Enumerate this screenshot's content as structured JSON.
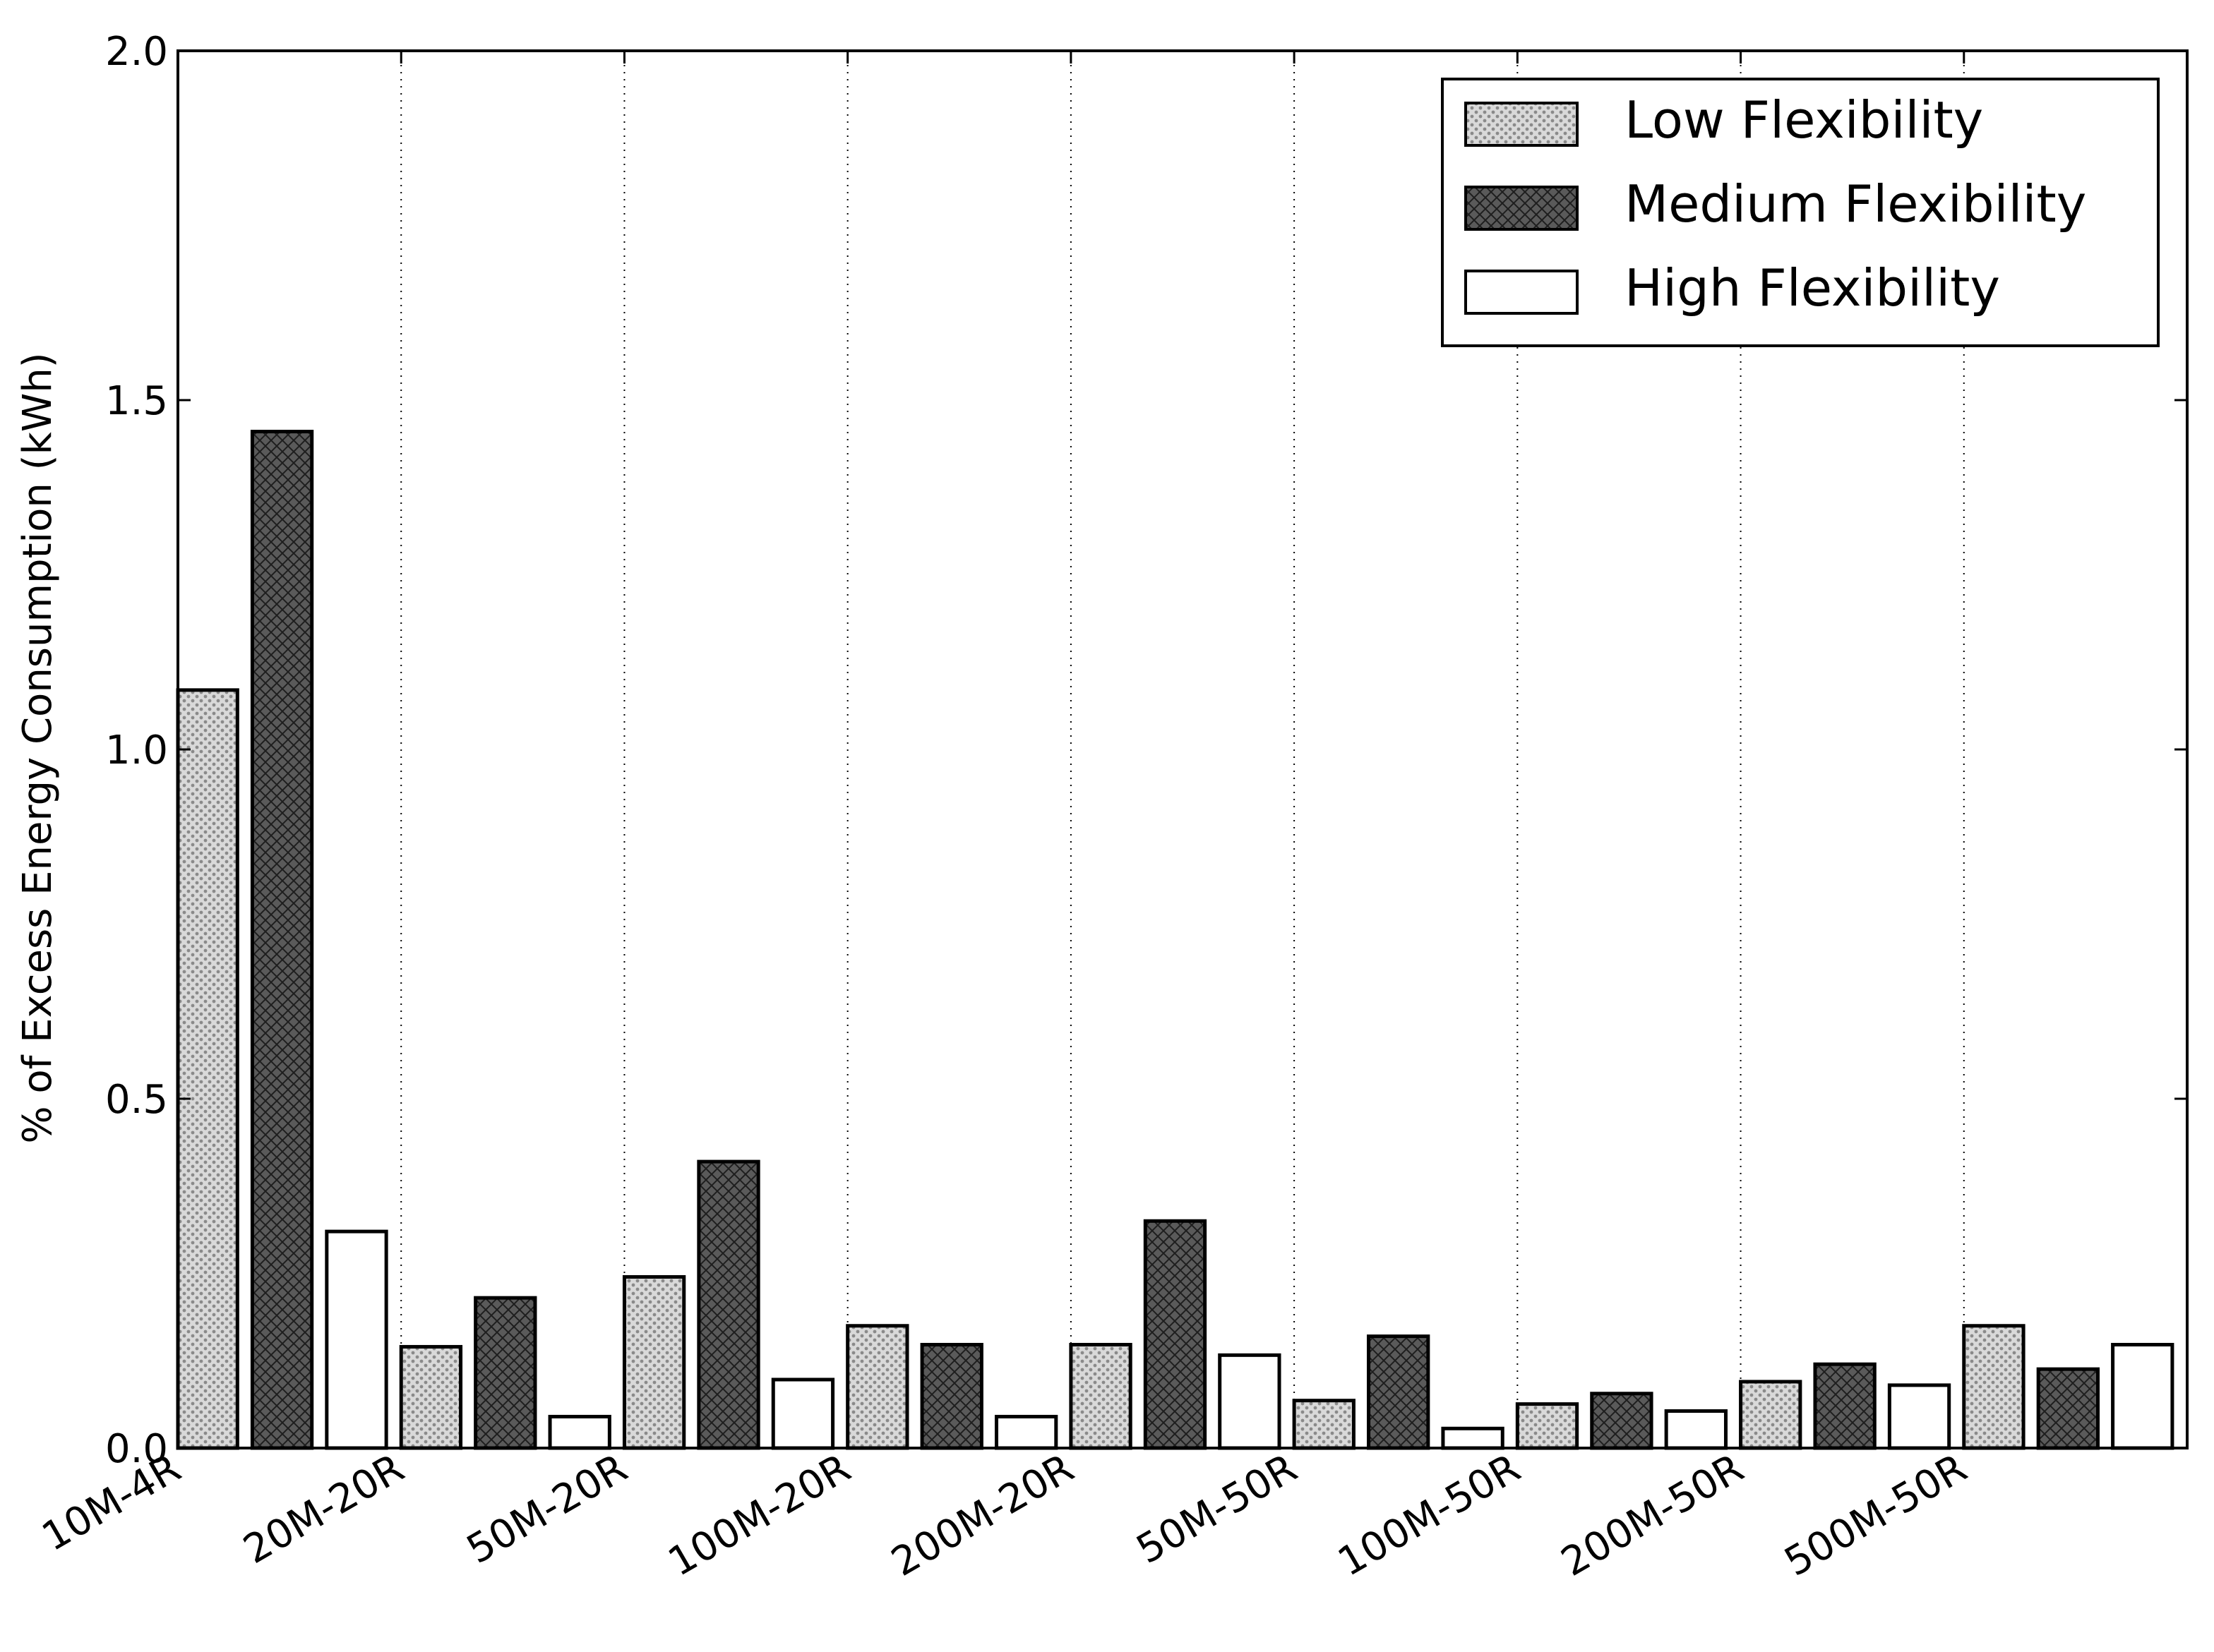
{
  "chart_data": {
    "type": "bar",
    "title": "",
    "xlabel": "",
    "ylabel": "% of Excess Energy Consumption (kWh)",
    "categories": [
      "10M-4R",
      "20M-20R",
      "50M-20R",
      "100M-20R",
      "200M-20R",
      "50M-50R",
      "100M-50R",
      "200M-50R",
      "500M-50R"
    ],
    "series": [
      {
        "name": "Low Flexibility",
        "values": [
          1.085,
          0.145,
          0.245,
          0.175,
          0.148,
          0.068,
          0.063,
          0.095,
          0.175
        ]
      },
      {
        "name": "Medium Flexibility",
        "values": [
          1.455,
          0.215,
          0.41,
          0.148,
          0.325,
          0.16,
          0.078,
          0.12,
          0.113
        ]
      },
      {
        "name": "High Flexibility",
        "values": [
          0.31,
          0.045,
          0.098,
          0.045,
          0.133,
          0.028,
          0.053,
          0.09,
          0.148
        ]
      }
    ],
    "ylim": [
      0,
      2.0
    ],
    "yticks": [
      "0.0",
      "0.5",
      "1.0",
      "1.5",
      "2.0"
    ],
    "grid": "vertical dotted lines at category boundaries",
    "legend": {
      "position": "top-right"
    },
    "series_styles": {
      "Low Flexibility": {
        "fill": "#d9d9d9",
        "hatch": "dots"
      },
      "Medium Flexibility": {
        "fill": "#555555",
        "hatch": "crosshatch"
      },
      "High Flexibility": {
        "fill": "#ffffff",
        "hatch": "none"
      }
    }
  }
}
